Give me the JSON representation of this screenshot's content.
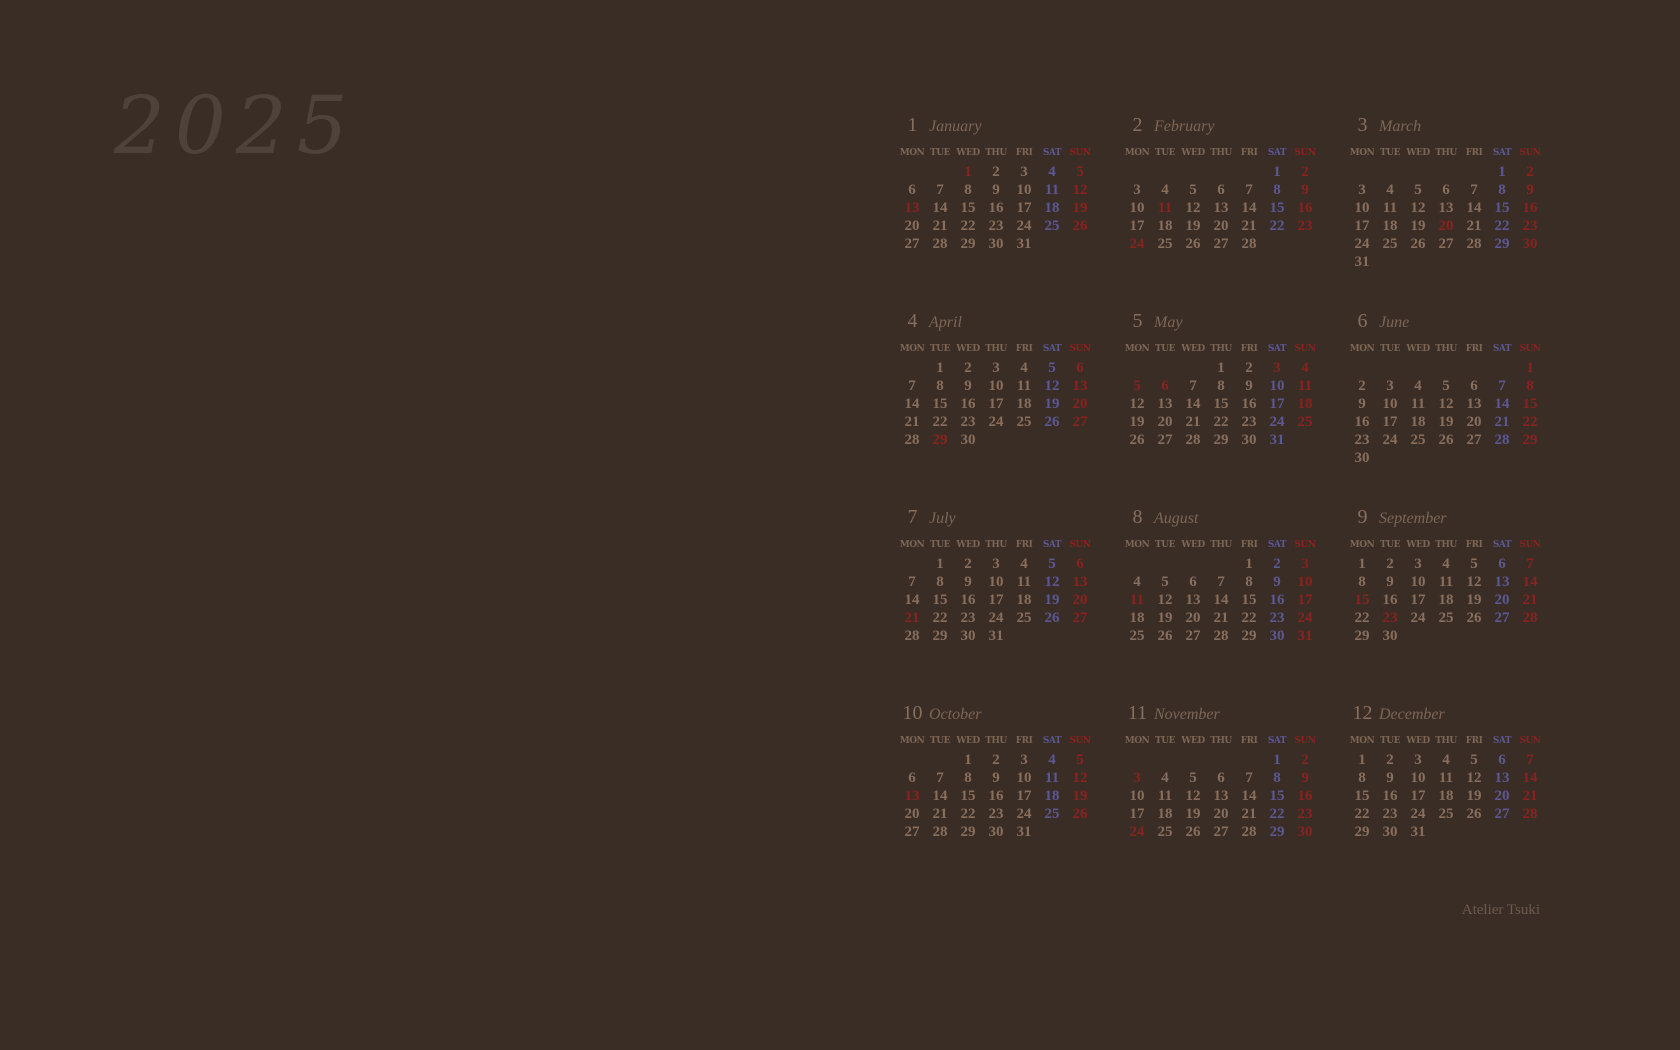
{
  "year": "2025",
  "brand": "Atelier Tsuki",
  "weekdays": [
    "MON",
    "TUE",
    "WED",
    "THU",
    "FRI",
    "SAT",
    "SUN"
  ],
  "colors": {
    "background": "#392d26",
    "year": "#4f423b",
    "text": "#8a6e5c",
    "saturday": "#5c5894",
    "sunday_holiday": "#8a221f"
  },
  "months": [
    {
      "num": "1",
      "name": "January",
      "start": 2,
      "days": 31,
      "holidays": [
        1,
        13
      ]
    },
    {
      "num": "2",
      "name": "February",
      "start": 5,
      "days": 28,
      "holidays": [
        11,
        24
      ]
    },
    {
      "num": "3",
      "name": "March",
      "start": 5,
      "days": 31,
      "holidays": [
        20
      ]
    },
    {
      "num": "4",
      "name": "April",
      "start": 1,
      "days": 30,
      "holidays": [
        29
      ]
    },
    {
      "num": "5",
      "name": "May",
      "start": 3,
      "days": 31,
      "holidays": [
        3,
        5,
        6
      ]
    },
    {
      "num": "6",
      "name": "June",
      "start": 6,
      "days": 30,
      "holidays": []
    },
    {
      "num": "7",
      "name": "July",
      "start": 1,
      "days": 31,
      "holidays": [
        21
      ]
    },
    {
      "num": "8",
      "name": "August",
      "start": 4,
      "days": 31,
      "holidays": [
        11
      ]
    },
    {
      "num": "9",
      "name": "September",
      "start": 0,
      "days": 30,
      "holidays": [
        15,
        23
      ]
    },
    {
      "num": "10",
      "name": "October",
      "start": 2,
      "days": 31,
      "holidays": [
        13
      ]
    },
    {
      "num": "11",
      "name": "November",
      "start": 5,
      "days": 30,
      "holidays": [
        3,
        24
      ]
    },
    {
      "num": "12",
      "name": "December",
      "start": 0,
      "days": 31,
      "holidays": []
    }
  ]
}
